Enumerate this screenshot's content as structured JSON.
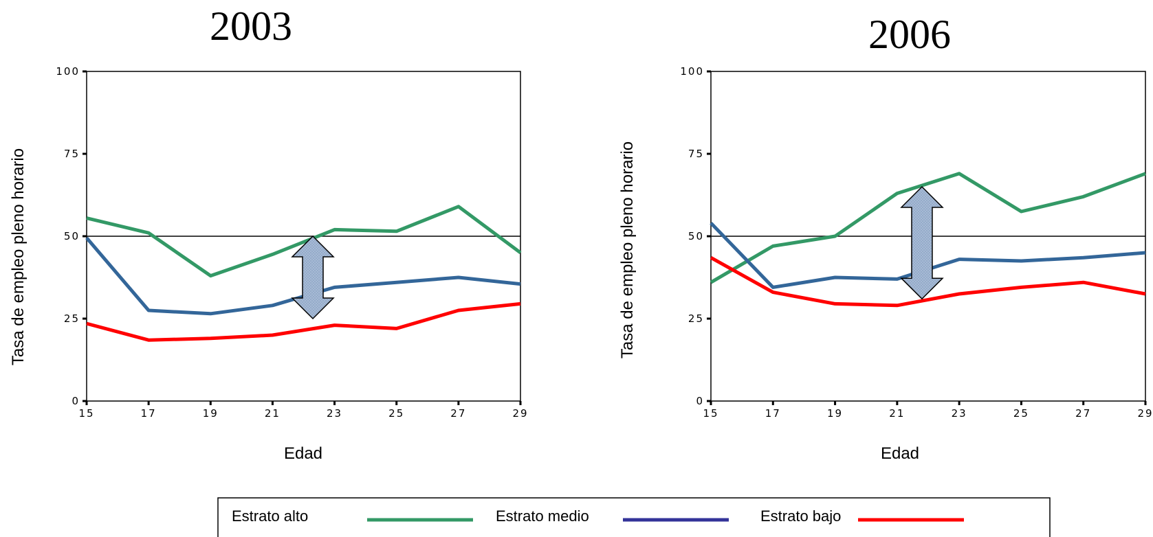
{
  "chart_data": [
    {
      "type": "line",
      "title": "2003",
      "xlabel": "Edad",
      "ylabel": "Tasa de empleo pleno horario",
      "x": [
        15,
        17,
        19,
        21,
        23,
        25,
        27,
        29
      ],
      "x_ticks": [
        15,
        17,
        19,
        21,
        23,
        25,
        27,
        29
      ],
      "y_ticks": [
        0,
        25,
        50,
        75,
        100
      ],
      "xlim": [
        15,
        29
      ],
      "ylim": [
        0,
        100
      ],
      "reference_line": 50,
      "gap_arrow": {
        "x": 22.3,
        "y_from": 25,
        "y_to": 50
      },
      "series": [
        {
          "name": "Estrato alto",
          "color": "#339966",
          "values": [
            55.5,
            51,
            38,
            44.5,
            52,
            51.5,
            59,
            45
          ]
        },
        {
          "name": "Estrato medio",
          "color": "#336699",
          "values": [
            49.5,
            27.5,
            26.5,
            29,
            34.5,
            36,
            37.5,
            35.5
          ]
        },
        {
          "name": "Estrato bajo",
          "color": "#ff0000",
          "values": [
            23.5,
            18.5,
            19,
            20,
            23,
            22,
            27.5,
            29.5
          ]
        }
      ]
    },
    {
      "type": "line",
      "title": "2006",
      "xlabel": "Edad",
      "ylabel": "Tasa de empleo pleno horario",
      "x": [
        15,
        17,
        19,
        21,
        23,
        25,
        27,
        29
      ],
      "x_ticks": [
        15,
        17,
        19,
        21,
        23,
        25,
        27,
        29
      ],
      "y_ticks": [
        0,
        25,
        50,
        75,
        100
      ],
      "xlim": [
        15,
        29
      ],
      "ylim": [
        0,
        100
      ],
      "reference_line": 50,
      "gap_arrow": {
        "x": 21.8,
        "y_from": 31,
        "y_to": 65
      },
      "series": [
        {
          "name": "Estrato alto",
          "color": "#339966",
          "values": [
            36,
            47,
            50,
            63,
            69,
            57.5,
            62,
            69
          ]
        },
        {
          "name": "Estrato medio",
          "color": "#336699",
          "values": [
            54,
            34.5,
            37.5,
            37,
            43,
            42.5,
            43.5,
            45
          ]
        },
        {
          "name": "Estrato bajo",
          "color": "#ff0000",
          "values": [
            43.5,
            33,
            29.5,
            29,
            32.5,
            34.5,
            36,
            32.5
          ]
        }
      ]
    }
  ],
  "legend": {
    "items": [
      {
        "label": "Estrato alto",
        "color": "#339966"
      },
      {
        "label": "Estrato medio",
        "color": "#333399"
      },
      {
        "label": "Estrato bajo",
        "color": "#ff0000"
      }
    ]
  },
  "arrow_fill": "#a9bcd6"
}
